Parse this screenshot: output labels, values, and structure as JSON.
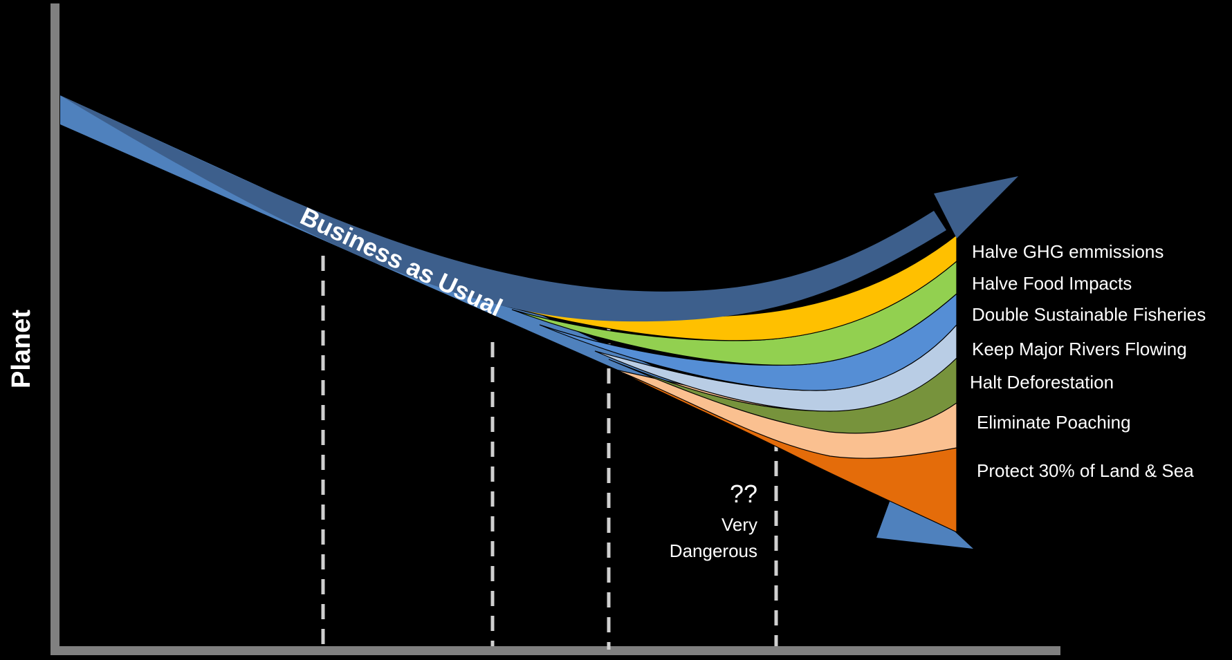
{
  "axis": {
    "y_label": "Planet",
    "color": "#808080"
  },
  "business_as_usual": {
    "label": "Business as Usual",
    "color": "#4f81bd"
  },
  "recovery_arrow": {
    "color": "#3d5f8c"
  },
  "bands": [
    {
      "label": "Halve GHG emmissions",
      "color": "#ffc000"
    },
    {
      "label": "Halve Food Impacts",
      "color": "#92d050"
    },
    {
      "label": "Double Sustainable  Fisheries",
      "color": "#558ed5"
    },
    {
      "label": "Keep Major Rivers Flowing",
      "color": "#b9cde5"
    },
    {
      "label": "Halt Deforestation",
      "color": "#77933c"
    },
    {
      "label": "Eliminate Poaching",
      "color": "#fac090"
    },
    {
      "label": "Protect 30% of Land & Sea",
      "color": "#e46c0a"
    }
  ],
  "annotation": {
    "marks": "??",
    "line1": "Very",
    "line2": "Dangerous"
  },
  "guide_line_color": "#d0d0d0"
}
